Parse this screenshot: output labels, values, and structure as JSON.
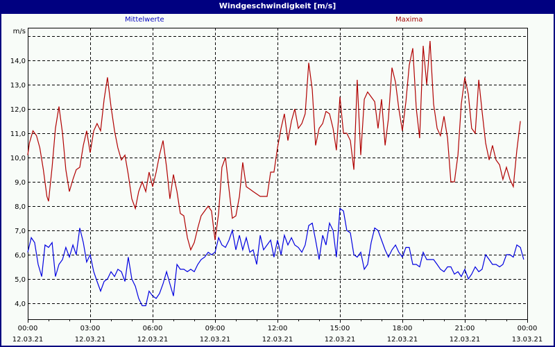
{
  "title": "Windgeschwindigkeit [m/s]",
  "legend": {
    "mean_label": "Mittelwerte",
    "max_label": "Maxima",
    "mean_color": "#0000e0",
    "max_color": "#b00000"
  },
  "chart_data": {
    "type": "line",
    "title": "Windgeschwindigkeit [m/s]",
    "ylabel": "m/s",
    "xlabel": "",
    "ylim": [
      3.3,
      15.4
    ],
    "yticks": [
      4.0,
      5.0,
      6.0,
      7.0,
      8.0,
      9.0,
      10.0,
      11.0,
      12.0,
      13.0,
      14.0
    ],
    "ytick_labels": [
      "4,0",
      "5,0",
      "6,0",
      "7,0",
      "8,0",
      "9,0",
      "10,0",
      "11,0",
      "12,0",
      "13,0",
      "14,0"
    ],
    "grid_extra_y": [
      15.0
    ],
    "xlim_hours": [
      0,
      24
    ],
    "xticks": [
      {
        "h": 0,
        "time": "00:00",
        "date": "12.03.21"
      },
      {
        "h": 3,
        "time": "03:00",
        "date": "12.03.21"
      },
      {
        "h": 6,
        "time": "06:00",
        "date": "12.03.21"
      },
      {
        "h": 9,
        "time": "09:00",
        "date": "12.03.21"
      },
      {
        "h": 12,
        "time": "12:00",
        "date": "12.03.21"
      },
      {
        "h": 15,
        "time": "15:00",
        "date": "12.03.21"
      },
      {
        "h": 18,
        "time": "18:00",
        "date": "12.03.21"
      },
      {
        "h": 21,
        "time": "21:00",
        "date": "12.03.21"
      },
      {
        "h": 24,
        "time": "00:00",
        "date": "13.03.21"
      }
    ],
    "grid": true,
    "legend_position": "top",
    "series": [
      {
        "name": "Mittelwerte",
        "color": "#0000e0",
        "points": [
          [
            0,
            6.1
          ],
          [
            0.17,
            6.7
          ],
          [
            0.33,
            6.5
          ],
          [
            0.5,
            5.6
          ],
          [
            0.67,
            5.1
          ],
          [
            0.83,
            6.4
          ],
          [
            1.0,
            6.3
          ],
          [
            1.17,
            6.5
          ],
          [
            1.33,
            5.1
          ],
          [
            1.5,
            5.6
          ],
          [
            1.67,
            5.8
          ],
          [
            1.83,
            6.3
          ],
          [
            2.0,
            5.9
          ],
          [
            2.17,
            6.4
          ],
          [
            2.33,
            6.0
          ],
          [
            2.5,
            7.1
          ],
          [
            2.67,
            6.5
          ],
          [
            2.83,
            5.7
          ],
          [
            3.0,
            6.0
          ],
          [
            3.17,
            5.3
          ],
          [
            3.33,
            4.9
          ],
          [
            3.5,
            4.5
          ],
          [
            3.67,
            4.9
          ],
          [
            3.83,
            5.0
          ],
          [
            4.0,
            5.3
          ],
          [
            4.17,
            5.1
          ],
          [
            4.33,
            5.4
          ],
          [
            4.5,
            5.3
          ],
          [
            4.67,
            4.9
          ],
          [
            4.83,
            5.9
          ],
          [
            5.0,
            5.0
          ],
          [
            5.17,
            4.7
          ],
          [
            5.33,
            4.2
          ],
          [
            5.5,
            3.9
          ],
          [
            5.67,
            3.9
          ],
          [
            5.83,
            4.5
          ],
          [
            6.0,
            4.3
          ],
          [
            6.17,
            4.2
          ],
          [
            6.33,
            4.4
          ],
          [
            6.5,
            4.8
          ],
          [
            6.67,
            5.3
          ],
          [
            6.83,
            4.8
          ],
          [
            7.0,
            4.3
          ],
          [
            7.17,
            5.6
          ],
          [
            7.33,
            5.4
          ],
          [
            7.5,
            5.4
          ],
          [
            7.67,
            5.3
          ],
          [
            7.83,
            5.4
          ],
          [
            8.0,
            5.3
          ],
          [
            8.17,
            5.6
          ],
          [
            8.33,
            5.8
          ],
          [
            8.5,
            5.9
          ],
          [
            8.67,
            6.1
          ],
          [
            8.83,
            6.0
          ],
          [
            9.0,
            6.1
          ],
          [
            9.17,
            6.7
          ],
          [
            9.33,
            6.4
          ],
          [
            9.5,
            6.3
          ],
          [
            9.67,
            6.6
          ],
          [
            9.83,
            7.0
          ],
          [
            10.0,
            6.2
          ],
          [
            10.17,
            6.8
          ],
          [
            10.33,
            6.2
          ],
          [
            10.5,
            6.7
          ],
          [
            10.67,
            6.1
          ],
          [
            10.83,
            6.2
          ],
          [
            11.0,
            5.6
          ],
          [
            11.17,
            6.8
          ],
          [
            11.33,
            6.2
          ],
          [
            11.5,
            6.4
          ],
          [
            11.67,
            6.6
          ],
          [
            11.83,
            5.9
          ],
          [
            12.0,
            6.6
          ],
          [
            12.17,
            6.0
          ],
          [
            12.33,
            6.8
          ],
          [
            12.5,
            6.4
          ],
          [
            12.67,
            6.7
          ],
          [
            12.83,
            6.4
          ],
          [
            13.0,
            6.3
          ],
          [
            13.17,
            6.1
          ],
          [
            13.33,
            6.4
          ],
          [
            13.5,
            7.2
          ],
          [
            13.67,
            7.3
          ],
          [
            13.83,
            6.6
          ],
          [
            14.0,
            5.8
          ],
          [
            14.17,
            6.8
          ],
          [
            14.33,
            6.4
          ],
          [
            14.5,
            7.3
          ],
          [
            14.67,
            7.0
          ],
          [
            14.83,
            5.9
          ],
          [
            15.0,
            7.9
          ],
          [
            15.17,
            7.8
          ],
          [
            15.33,
            7.0
          ],
          [
            15.5,
            6.9
          ],
          [
            15.67,
            6.0
          ],
          [
            15.83,
            5.9
          ],
          [
            16.0,
            6.1
          ],
          [
            16.17,
            5.4
          ],
          [
            16.33,
            5.6
          ],
          [
            16.5,
            6.5
          ],
          [
            16.67,
            7.1
          ],
          [
            16.83,
            7.0
          ],
          [
            17.0,
            6.6
          ],
          [
            17.17,
            6.2
          ],
          [
            17.33,
            5.9
          ],
          [
            17.5,
            6.2
          ],
          [
            17.67,
            6.4
          ],
          [
            17.83,
            6.1
          ],
          [
            18.0,
            5.9
          ],
          [
            18.17,
            6.3
          ],
          [
            18.33,
            6.3
          ],
          [
            18.5,
            5.6
          ],
          [
            18.67,
            5.6
          ],
          [
            18.83,
            5.5
          ],
          [
            19.0,
            6.1
          ],
          [
            19.17,
            5.8
          ],
          [
            19.33,
            5.8
          ],
          [
            19.5,
            5.8
          ],
          [
            19.67,
            5.6
          ],
          [
            19.83,
            5.4
          ],
          [
            20.0,
            5.3
          ],
          [
            20.17,
            5.5
          ],
          [
            20.33,
            5.5
          ],
          [
            20.5,
            5.2
          ],
          [
            20.67,
            5.3
          ],
          [
            20.83,
            5.1
          ],
          [
            21.0,
            5.4
          ],
          [
            21.17,
            5.0
          ],
          [
            21.33,
            5.2
          ],
          [
            21.5,
            5.5
          ],
          [
            21.67,
            5.3
          ],
          [
            21.83,
            5.4
          ],
          [
            22.0,
            6.0
          ],
          [
            22.17,
            5.8
          ],
          [
            22.33,
            5.6
          ],
          [
            22.5,
            5.6
          ],
          [
            22.67,
            5.5
          ],
          [
            22.83,
            5.6
          ],
          [
            23.0,
            6.0
          ],
          [
            23.17,
            6.0
          ],
          [
            23.33,
            5.9
          ],
          [
            23.5,
            6.4
          ],
          [
            23.67,
            6.3
          ],
          [
            23.83,
            5.8
          ]
        ]
      },
      {
        "name": "Maxima",
        "color": "#b00000",
        "points": [
          [
            0,
            10.1
          ],
          [
            0.08,
            10.6
          ],
          [
            0.25,
            11.1
          ],
          [
            0.42,
            10.9
          ],
          [
            0.58,
            10.4
          ],
          [
            0.75,
            9.5
          ],
          [
            0.92,
            8.4
          ],
          [
            1.0,
            8.2
          ],
          [
            1.17,
            9.6
          ],
          [
            1.33,
            11.2
          ],
          [
            1.5,
            12.1
          ],
          [
            1.67,
            11.0
          ],
          [
            1.83,
            9.5
          ],
          [
            2.0,
            8.6
          ],
          [
            2.17,
            9.1
          ],
          [
            2.33,
            9.5
          ],
          [
            2.5,
            9.6
          ],
          [
            2.67,
            10.5
          ],
          [
            2.83,
            11.1
          ],
          [
            3.0,
            10.2
          ],
          [
            3.17,
            11.1
          ],
          [
            3.33,
            11.4
          ],
          [
            3.5,
            11.1
          ],
          [
            3.67,
            12.4
          ],
          [
            3.83,
            13.3
          ],
          [
            4.0,
            12.1
          ],
          [
            4.17,
            11.1
          ],
          [
            4.33,
            10.4
          ],
          [
            4.5,
            9.9
          ],
          [
            4.67,
            10.1
          ],
          [
            4.83,
            9.3
          ],
          [
            5.0,
            8.3
          ],
          [
            5.17,
            7.9
          ],
          [
            5.33,
            8.6
          ],
          [
            5.5,
            9.0
          ],
          [
            5.67,
            8.6
          ],
          [
            5.83,
            9.4
          ],
          [
            6.0,
            8.8
          ],
          [
            6.17,
            9.4
          ],
          [
            6.33,
            10.1
          ],
          [
            6.5,
            10.7
          ],
          [
            6.67,
            9.6
          ],
          [
            6.83,
            8.3
          ],
          [
            7.0,
            9.3
          ],
          [
            7.17,
            8.6
          ],
          [
            7.33,
            7.7
          ],
          [
            7.5,
            7.6
          ],
          [
            7.67,
            6.7
          ],
          [
            7.83,
            6.2
          ],
          [
            8.0,
            6.5
          ],
          [
            8.17,
            7.1
          ],
          [
            8.33,
            7.6
          ],
          [
            8.5,
            7.8
          ],
          [
            8.67,
            8.0
          ],
          [
            8.83,
            7.8
          ],
          [
            9.0,
            6.6
          ],
          [
            9.17,
            7.7
          ],
          [
            9.33,
            9.6
          ],
          [
            9.5,
            10.0
          ],
          [
            9.67,
            8.7
          ],
          [
            9.83,
            7.5
          ],
          [
            10.0,
            7.6
          ],
          [
            10.17,
            8.4
          ],
          [
            10.33,
            9.8
          ],
          [
            10.5,
            8.8
          ],
          [
            10.67,
            8.7
          ],
          [
            10.83,
            8.6
          ],
          [
            11.0,
            8.5
          ],
          [
            11.17,
            8.4
          ],
          [
            11.33,
            8.4
          ],
          [
            11.5,
            8.4
          ],
          [
            11.67,
            9.4
          ],
          [
            11.83,
            9.4
          ],
          [
            12.0,
            10.4
          ],
          [
            12.17,
            11.2
          ],
          [
            12.33,
            11.8
          ],
          [
            12.5,
            10.7
          ],
          [
            12.67,
            11.5
          ],
          [
            12.83,
            12.0
          ],
          [
            13.0,
            11.2
          ],
          [
            13.17,
            11.4
          ],
          [
            13.33,
            11.8
          ],
          [
            13.5,
            13.9
          ],
          [
            13.67,
            12.8
          ],
          [
            13.83,
            10.5
          ],
          [
            14.0,
            11.2
          ],
          [
            14.17,
            11.4
          ],
          [
            14.33,
            11.9
          ],
          [
            14.5,
            11.8
          ],
          [
            14.67,
            11.2
          ],
          [
            14.83,
            10.3
          ],
          [
            15.0,
            12.5
          ],
          [
            15.17,
            11.0
          ],
          [
            15.33,
            11.0
          ],
          [
            15.5,
            10.7
          ],
          [
            15.67,
            9.5
          ],
          [
            15.83,
            13.2
          ],
          [
            16.0,
            10.1
          ],
          [
            16.17,
            12.4
          ],
          [
            16.33,
            12.7
          ],
          [
            16.5,
            12.5
          ],
          [
            16.67,
            12.3
          ],
          [
            16.83,
            11.2
          ],
          [
            17.0,
            12.4
          ],
          [
            17.17,
            10.5
          ],
          [
            17.33,
            11.6
          ],
          [
            17.5,
            13.7
          ],
          [
            17.67,
            13.1
          ],
          [
            17.83,
            12.0
          ],
          [
            18.0,
            11.1
          ],
          [
            18.17,
            12.3
          ],
          [
            18.33,
            13.8
          ],
          [
            18.5,
            14.5
          ],
          [
            18.67,
            12.0
          ],
          [
            18.83,
            10.8
          ],
          [
            19.0,
            14.6
          ],
          [
            19.17,
            13.0
          ],
          [
            19.33,
            14.8
          ],
          [
            19.5,
            12.2
          ],
          [
            19.67,
            11.2
          ],
          [
            19.83,
            10.9
          ],
          [
            20.0,
            11.7
          ],
          [
            20.17,
            10.8
          ],
          [
            20.33,
            9.0
          ],
          [
            20.5,
            9.0
          ],
          [
            20.67,
            10.1
          ],
          [
            20.83,
            12.2
          ],
          [
            21.0,
            13.3
          ],
          [
            21.17,
            12.6
          ],
          [
            21.33,
            11.2
          ],
          [
            21.5,
            11.0
          ],
          [
            21.67,
            13.2
          ],
          [
            21.83,
            11.9
          ],
          [
            22.0,
            10.6
          ],
          [
            22.17,
            9.9
          ],
          [
            22.33,
            10.5
          ],
          [
            22.5,
            9.9
          ],
          [
            22.67,
            9.7
          ],
          [
            22.83,
            9.1
          ],
          [
            23.0,
            9.6
          ],
          [
            23.17,
            9.1
          ],
          [
            23.33,
            8.8
          ],
          [
            23.5,
            10.3
          ],
          [
            23.67,
            11.5
          ]
        ]
      }
    ]
  }
}
